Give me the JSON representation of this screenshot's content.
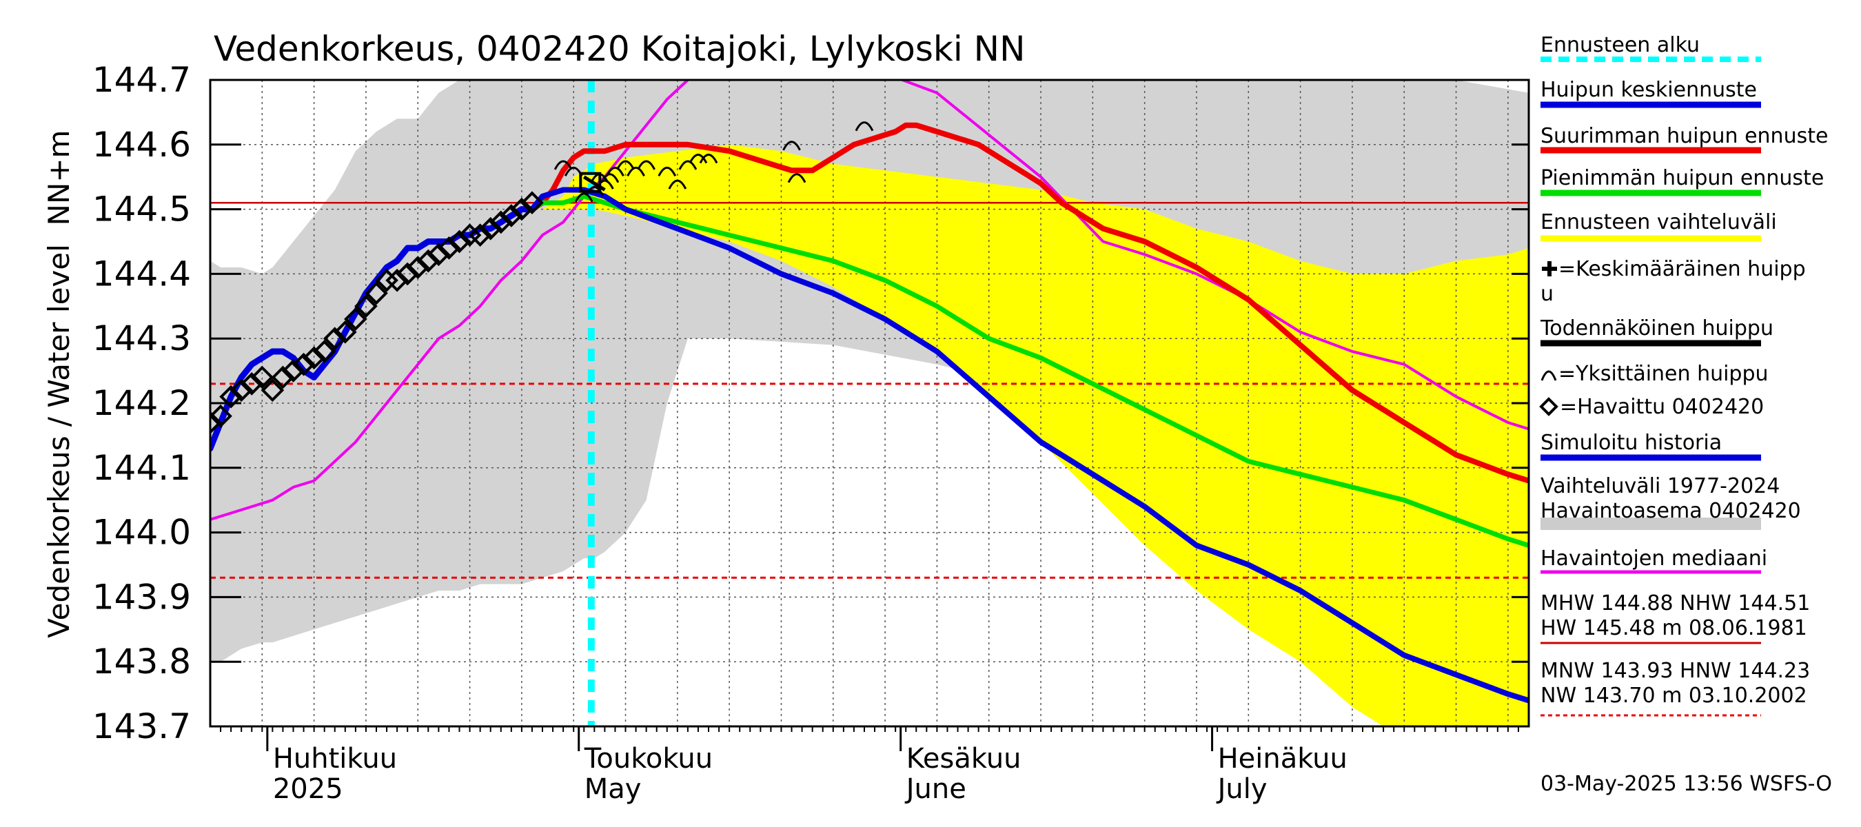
{
  "chart_data": {
    "type": "line",
    "title": "Vedenkorkeus, 0402420 Koitajoki, Lylykoski NN",
    "ylabel_units": "NN+m",
    "ylabel": "Vedenkorkeus / Water level",
    "ylim": [
      143.7,
      144.7
    ],
    "yticks": [
      "144.7",
      "144.6",
      "144.5",
      "144.4",
      "144.3",
      "144.2",
      "144.1",
      "144.0",
      "143.9",
      "143.8",
      "143.7"
    ],
    "x_start": "2025-03-26",
    "x_end": "2025-08-01",
    "forecast_start": "2025-05-01",
    "grid": true,
    "months": [
      {
        "fi": "Huhtikuu",
        "en": "2025",
        "start": 6
      },
      {
        "fi": "Toukokuu",
        "en": "May",
        "start": 36
      },
      {
        "fi": "Kesäkuu",
        "en": "June",
        "start": 67
      },
      {
        "fi": "Heinäkuu",
        "en": "July",
        "start": 97
      }
    ],
    "reference_lines": [
      {
        "label": "NHW",
        "value": 144.51,
        "color": "#cc0000",
        "style": "solid"
      },
      {
        "label": "HNW",
        "value": 144.23,
        "color": "#ee0000",
        "style": "dashed"
      },
      {
        "label": "MNW",
        "value": 143.93,
        "color": "#ee0000",
        "style": "dashed"
      }
    ],
    "historical_range": {
      "x": [
        0,
        1,
        3,
        5,
        6,
        8,
        10,
        12,
        14,
        16,
        18,
        20,
        22,
        24,
        26,
        27,
        28,
        30,
        32,
        34,
        35,
        36,
        37,
        38,
        40,
        42,
        44,
        46,
        50,
        60,
        70,
        80,
        90,
        95,
        100,
        110,
        120,
        127
      ],
      "upper": [
        144.42,
        144.41,
        144.41,
        144.4,
        144.41,
        144.45,
        144.49,
        144.53,
        144.59,
        144.62,
        144.64,
        144.64,
        144.68,
        144.7,
        144.7,
        144.7,
        144.7,
        144.7,
        144.7,
        144.7,
        144.7,
        144.7,
        144.7,
        144.7,
        144.7,
        144.7,
        144.7,
        144.7,
        144.7,
        144.7,
        144.7,
        144.7,
        144.7,
        144.7,
        144.7,
        144.7,
        144.7,
        144.68
      ],
      "lower": [
        143.8,
        143.8,
        143.82,
        143.83,
        143.83,
        143.84,
        143.85,
        143.86,
        143.87,
        143.88,
        143.89,
        143.9,
        143.91,
        143.91,
        143.92,
        143.92,
        143.92,
        143.92,
        143.93,
        143.94,
        143.95,
        143.96,
        143.96,
        143.97,
        144.0,
        144.05,
        144.2,
        144.3,
        144.3,
        144.29,
        144.26,
        144.22,
        144.21,
        144.2,
        144.2,
        144.38,
        144.42,
        144.43
      ]
    },
    "forecast_range": {
      "x": [
        32,
        34,
        35,
        37,
        40,
        45,
        50,
        55,
        60,
        65,
        70,
        75,
        80,
        85,
        90,
        95,
        100,
        105,
        110,
        115,
        120,
        125,
        127
      ],
      "upper": [
        144.5,
        144.52,
        144.55,
        144.57,
        144.58,
        144.59,
        144.6,
        144.59,
        144.57,
        144.56,
        144.55,
        144.54,
        144.53,
        144.51,
        144.5,
        144.47,
        144.45,
        144.42,
        144.4,
        144.4,
        144.42,
        144.43,
        144.44
      ],
      "lower": [
        144.5,
        144.5,
        144.5,
        144.5,
        144.49,
        144.47,
        144.45,
        144.42,
        144.38,
        144.33,
        144.28,
        144.21,
        144.14,
        144.06,
        143.98,
        143.91,
        143.85,
        143.8,
        143.73,
        143.68,
        143.65,
        143.6,
        143.55
      ]
    },
    "series": [
      {
        "name": "Havaintojen mediaani",
        "color": "#ee00ee",
        "x": [
          0,
          2,
          4,
          6,
          8,
          10,
          12,
          14,
          16,
          18,
          20,
          22,
          24,
          26,
          28,
          30,
          32,
          34,
          36,
          38,
          40,
          42,
          44,
          46,
          48,
          50,
          60,
          70,
          80,
          86,
          90,
          95,
          100,
          105,
          110,
          115,
          120,
          125,
          127
        ],
        "y": [
          144.02,
          144.03,
          144.04,
          144.05,
          144.07,
          144.08,
          144.11,
          144.14,
          144.18,
          144.22,
          144.26,
          144.3,
          144.32,
          144.35,
          144.39,
          144.42,
          144.46,
          144.48,
          144.52,
          144.55,
          144.59,
          144.63,
          144.67,
          144.7,
          144.72,
          144.74,
          144.74,
          144.68,
          144.55,
          144.45,
          144.43,
          144.4,
          144.36,
          144.31,
          144.28,
          144.26,
          144.21,
          144.17,
          144.16
        ]
      },
      {
        "name": "Suurimman huipun ennuste",
        "color": "#ee0000",
        "x": [
          31,
          32,
          33,
          34,
          35,
          36,
          37,
          38,
          40,
          42,
          44,
          46,
          50,
          52,
          54,
          56,
          58,
          60,
          62,
          64,
          66,
          67,
          68,
          70,
          72,
          74,
          76,
          78,
          80,
          82,
          84,
          86,
          88,
          90,
          95,
          100,
          105,
          110,
          115,
          120,
          125,
          127
        ],
        "y": [
          144.5,
          144.51,
          144.53,
          144.56,
          144.58,
          144.59,
          144.59,
          144.59,
          144.6,
          144.6,
          144.6,
          144.6,
          144.59,
          144.58,
          144.57,
          144.56,
          144.56,
          144.58,
          144.6,
          144.61,
          144.62,
          144.63,
          144.63,
          144.62,
          144.61,
          144.6,
          144.58,
          144.56,
          144.54,
          144.51,
          144.49,
          144.47,
          144.46,
          144.45,
          144.41,
          144.36,
          144.29,
          144.22,
          144.17,
          144.12,
          144.09,
          144.08
        ]
      },
      {
        "name": "Pienimmän huipun ennuste",
        "color": "#00dd00",
        "x": [
          31,
          32,
          34,
          36,
          38,
          40,
          45,
          50,
          55,
          60,
          65,
          70,
          75,
          80,
          85,
          90,
          95,
          100,
          105,
          110,
          115,
          120,
          125,
          127
        ],
        "y": [
          144.5,
          144.51,
          144.51,
          144.52,
          144.51,
          144.5,
          144.48,
          144.46,
          144.44,
          144.42,
          144.39,
          144.35,
          144.3,
          144.27,
          144.23,
          144.19,
          144.15,
          144.11,
          144.09,
          144.07,
          144.05,
          144.02,
          143.99,
          143.98
        ]
      },
      {
        "name": "Huipun keskiennuste",
        "color": "#0000dd",
        "x": [
          31,
          32,
          34,
          36,
          38,
          40,
          45,
          50,
          55,
          60,
          65,
          70,
          75,
          80,
          85,
          90,
          95,
          100,
          105,
          110,
          115,
          120,
          125,
          127
        ],
        "y": [
          144.5,
          144.52,
          144.53,
          144.53,
          144.52,
          144.5,
          144.47,
          144.44,
          144.4,
          144.37,
          144.33,
          144.28,
          144.21,
          144.14,
          144.09,
          144.04,
          143.98,
          143.95,
          143.91,
          143.86,
          143.81,
          143.78,
          143.75,
          143.74
        ]
      },
      {
        "name": "Simuloitu historia",
        "color": "#0000dd",
        "x": [
          0,
          1,
          2,
          3,
          4,
          5,
          6,
          7,
          8,
          9,
          10,
          11,
          12,
          13,
          14,
          15,
          16,
          17,
          18,
          19,
          20,
          21,
          22,
          23,
          24,
          25,
          26,
          27,
          28,
          29,
          30,
          31
        ],
        "y": [
          144.13,
          144.17,
          144.21,
          144.24,
          144.26,
          144.27,
          144.28,
          144.28,
          144.27,
          144.25,
          144.24,
          144.26,
          144.28,
          144.31,
          144.34,
          144.37,
          144.39,
          144.41,
          144.42,
          144.44,
          144.44,
          144.45,
          144.45,
          144.45,
          144.46,
          144.46,
          144.47,
          144.47,
          144.48,
          144.49,
          144.5,
          144.5
        ]
      },
      {
        "name": "Havaittu 0402420",
        "color": "#000000",
        "marker": "diamond",
        "x": [
          0,
          1,
          2,
          3,
          4,
          5,
          6,
          7,
          8,
          9,
          10,
          11,
          12,
          13,
          14,
          15,
          16,
          17,
          18,
          19,
          20,
          21,
          22,
          23,
          24,
          25,
          26,
          27,
          28,
          29,
          30,
          31
        ],
        "y": [
          144.17,
          144.18,
          144.21,
          144.22,
          144.23,
          144.24,
          144.22,
          144.24,
          144.25,
          144.26,
          144.27,
          144.28,
          144.3,
          144.31,
          144.33,
          144.35,
          144.37,
          144.39,
          144.39,
          144.4,
          144.41,
          144.42,
          144.43,
          144.44,
          144.45,
          144.46,
          144.46,
          144.47,
          144.48,
          144.49,
          144.5,
          144.51
        ]
      }
    ],
    "individual_peaks": {
      "symbol": "arc",
      "x": [
        34,
        35,
        36,
        37,
        37.5,
        38,
        38.5,
        39,
        40,
        41,
        42,
        44,
        45,
        46,
        47,
        48,
        56,
        56.5,
        63
      ],
      "y": [
        144.57,
        144.56,
        144.52,
        144.53,
        144.55,
        144.54,
        144.55,
        144.56,
        144.57,
        144.56,
        144.57,
        144.56,
        144.54,
        144.57,
        144.58,
        144.58,
        144.6,
        144.55,
        144.63
      ]
    },
    "probable_peak": {
      "x": [
        36,
        38
      ],
      "y": [
        144.55,
        144.53
      ]
    },
    "legend": {
      "placement": "right",
      "items": [
        {
          "label": "Ennusteen alku",
          "symbol": "dash",
          "color": "#00ffff"
        },
        {
          "label": "Huipun keskiennuste",
          "symbol": "line",
          "color": "#0000dd"
        },
        {
          "label": "Suurimman huipun ennuste",
          "symbol": "line",
          "color": "#ee0000"
        },
        {
          "label": "Pienimmän huipun ennuste",
          "symbol": "line",
          "color": "#00dd00"
        },
        {
          "label": "Ennusteen vaihteluväli",
          "symbol": "line",
          "color": "#ffff00"
        },
        {
          "label": "=Keskimääräinen huipp",
          "label2": "u",
          "symbol": "cross",
          "color": "#000000"
        },
        {
          "label": "Todennäköinen huippu",
          "symbol": "line",
          "color": "#000000"
        },
        {
          "label": "=Yksittäinen huippu",
          "symbol": "arc",
          "color": "#000000"
        },
        {
          "label": "=Havaittu 0402420",
          "symbol": "diamond",
          "color": "#000000"
        },
        {
          "label": "Simuloitu historia",
          "symbol": "line",
          "color": "#0000dd"
        },
        {
          "label": "Vaihteluväli 1977-2024",
          "label2": " Havaintoasema 0402420",
          "symbol": "line",
          "color": "#cccccc"
        },
        {
          "label": "Havaintojen mediaani",
          "symbol": "line",
          "color": "#ee00ee"
        },
        {
          "label": "MHW 144.88 NHW 144.51",
          "label2": "HW 145.48 m 08.06.1981",
          "symbol": "line",
          "color": "#cc0000"
        },
        {
          "label": "MNW 143.93 HNW 144.23",
          "label2": "NW 143.70 m 03.10.2002",
          "symbol": "dashed",
          "color": "#ee0000"
        }
      ]
    },
    "timestamp": "03-May-2025 13:56 WSFS-O"
  }
}
